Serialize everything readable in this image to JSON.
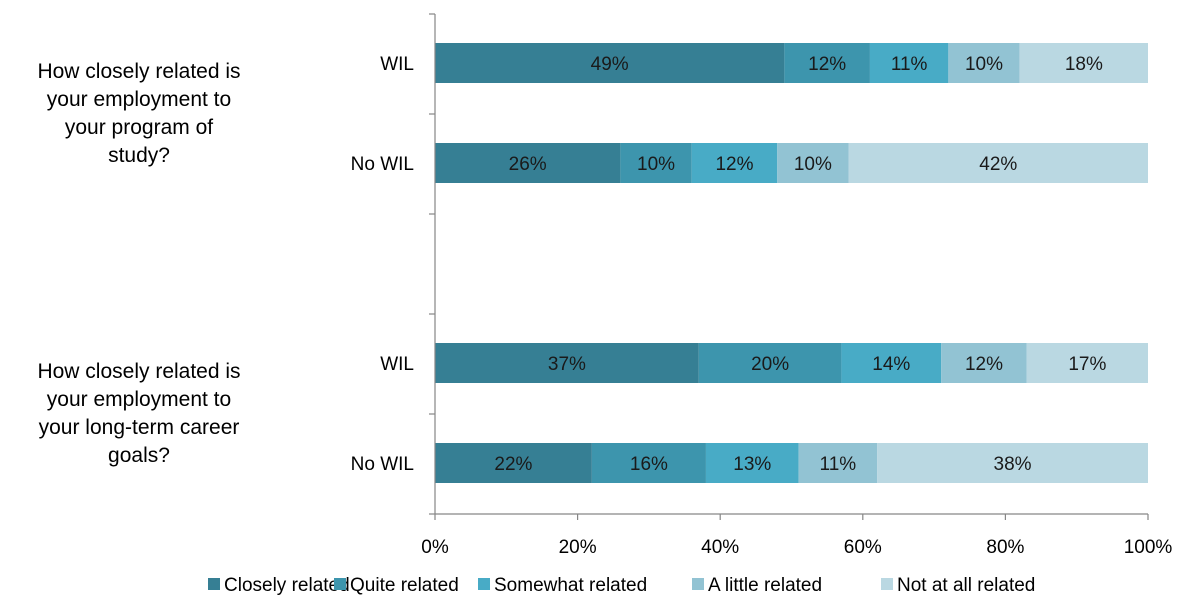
{
  "chart_data": {
    "type": "bar",
    "orientation": "horizontal",
    "stacked": true,
    "groups": [
      {
        "label": "How closely related is your employment to your program of study?",
        "label_lines": [
          "How closely related is",
          "your employment to",
          "your program of",
          "study?"
        ],
        "rows": [
          {
            "label": "WIL",
            "values": [
              49,
              12,
              11,
              10,
              18
            ]
          },
          {
            "label": "No WIL",
            "values": [
              26,
              10,
              12,
              10,
              42
            ]
          }
        ]
      },
      {
        "label": "How closely related is your employment to your long-term career goals?",
        "label_lines": [
          "How closely related is",
          "your employment to",
          "your long-term career",
          "goals?"
        ],
        "rows": [
          {
            "label": "WIL",
            "values": [
              37,
              20,
              14,
              12,
              17
            ]
          },
          {
            "label": "No WIL",
            "values": [
              22,
              16,
              13,
              11,
              38
            ]
          }
        ]
      }
    ],
    "series": [
      {
        "name": "Closely related",
        "color": "#367f94"
      },
      {
        "name": "Quite related",
        "color": "#3d95ad"
      },
      {
        "name": "Somewhat related",
        "color": "#48abc6"
      },
      {
        "name": "A little related",
        "color": "#92c3d3"
      },
      {
        "name": "Not at all related",
        "color": "#bad8e2"
      }
    ],
    "value_suffix": "%",
    "x_ticks": [
      "0%",
      "20%",
      "40%",
      "60%",
      "80%",
      "100%"
    ],
    "xlim": [
      0,
      100
    ],
    "grid": false,
    "legend_position": "bottom"
  }
}
